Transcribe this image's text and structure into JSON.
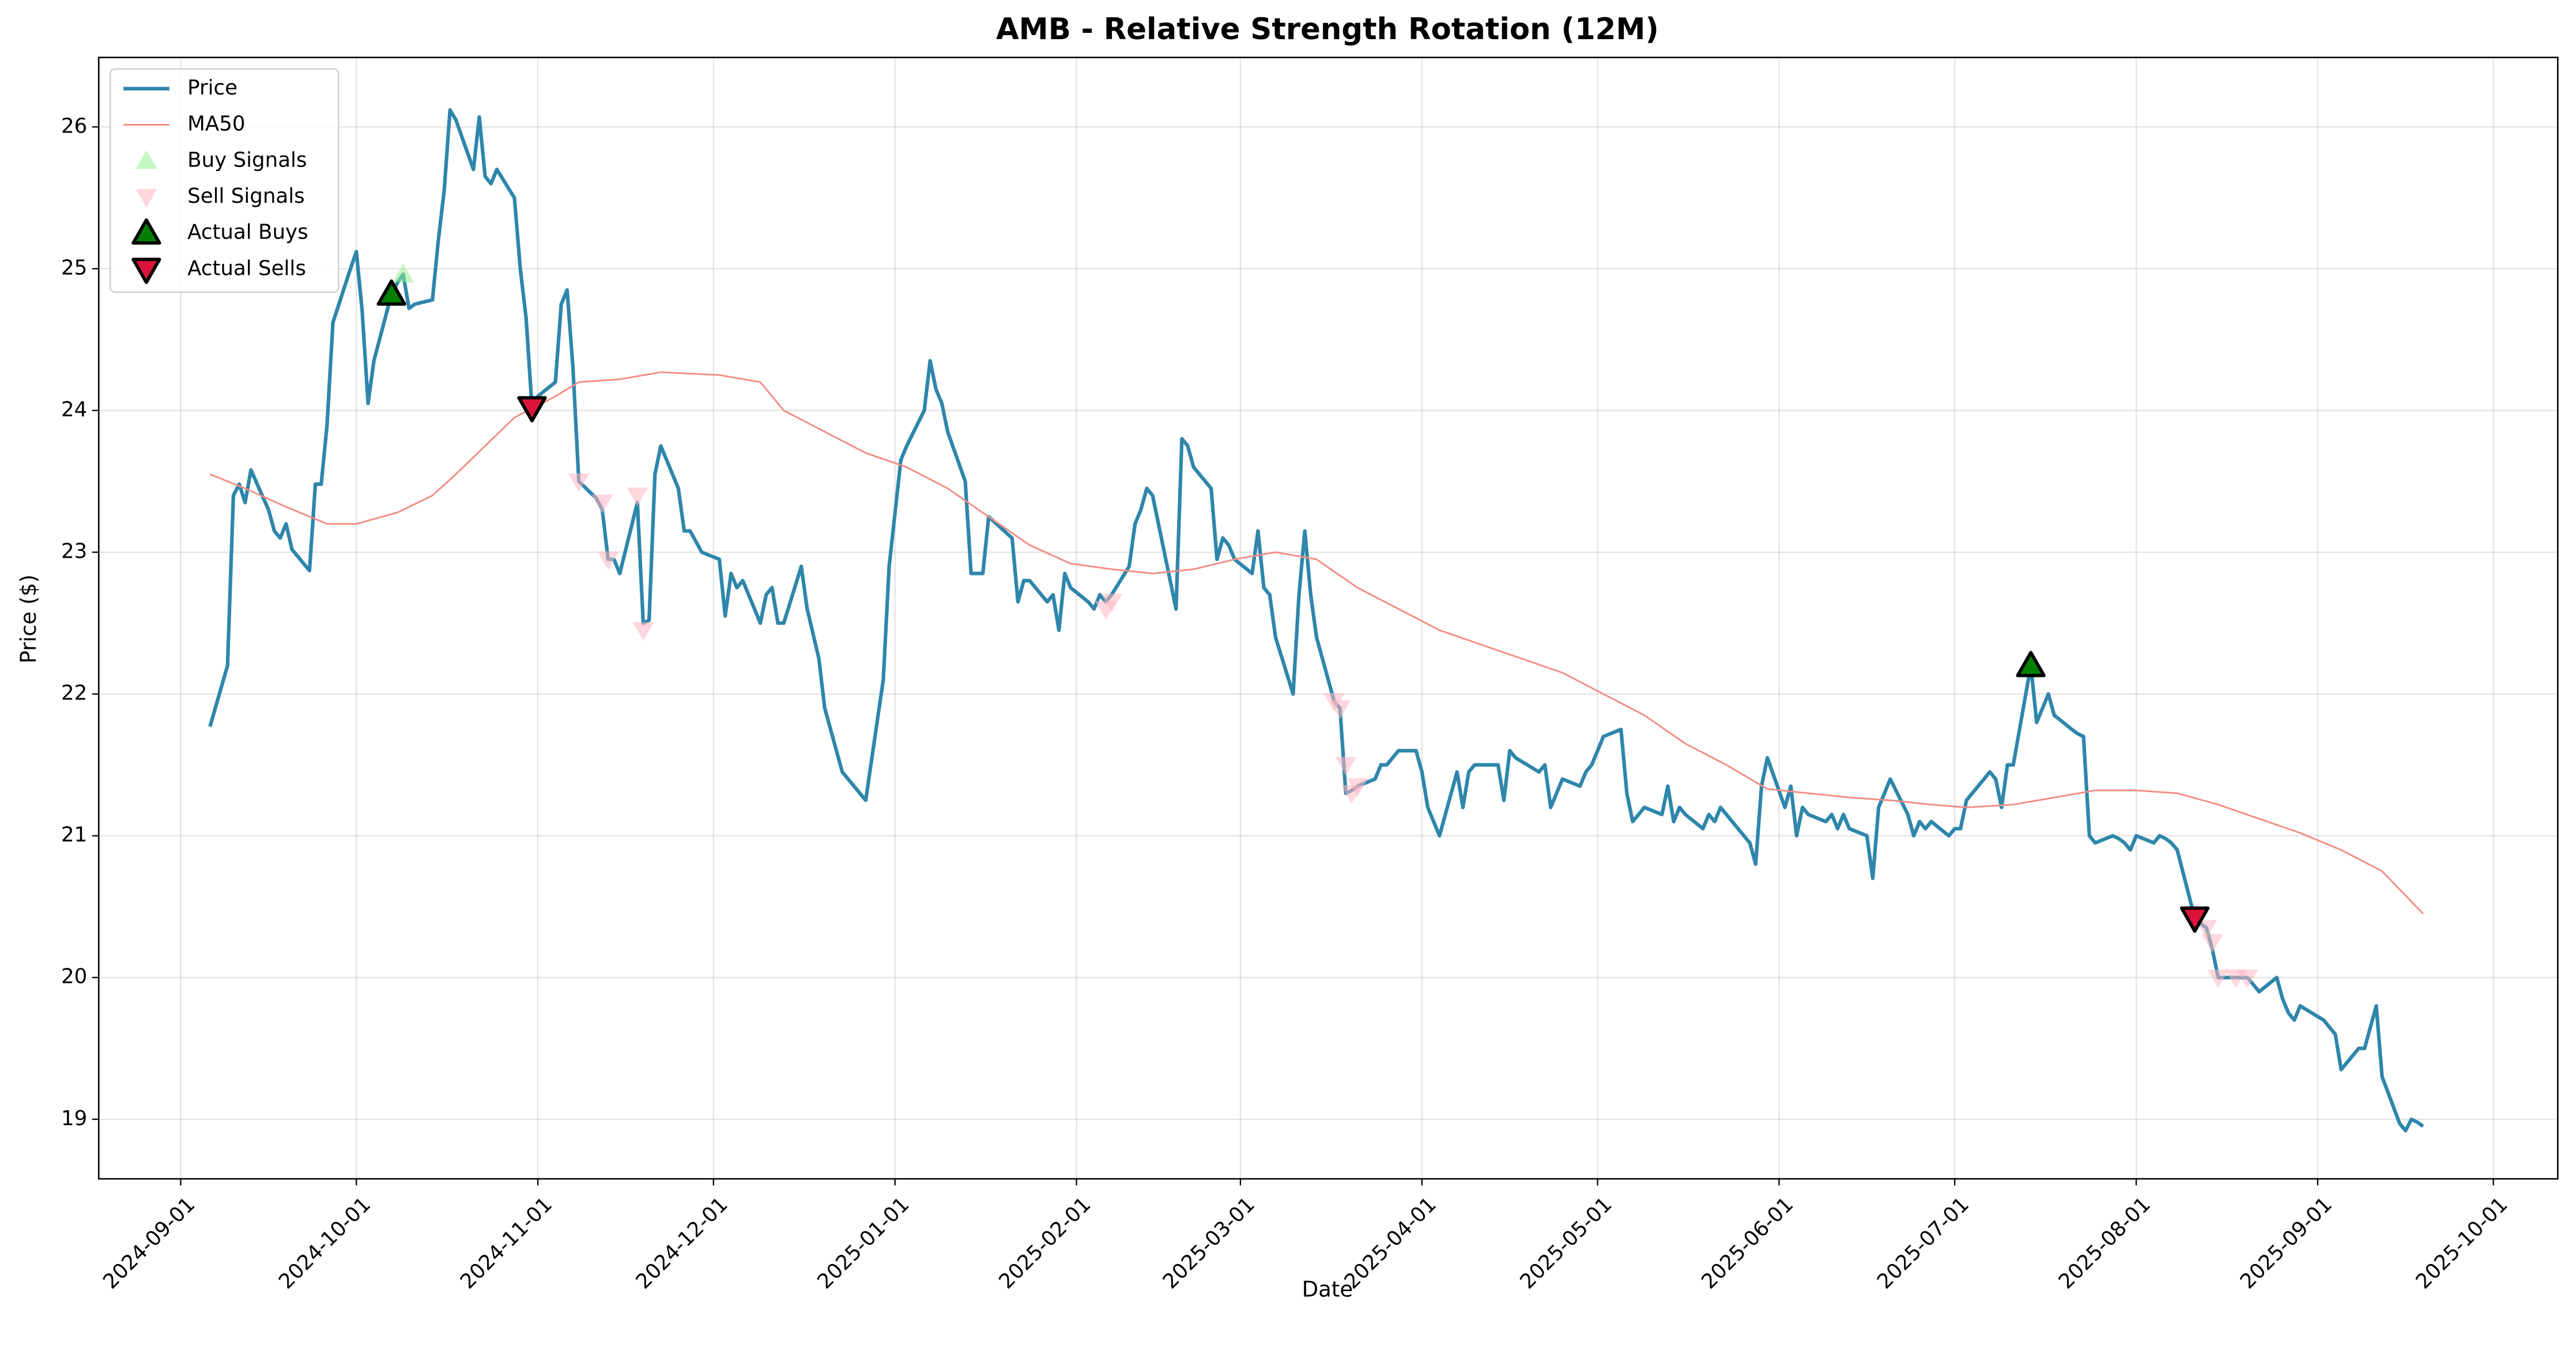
{
  "chart_data": {
    "type": "line",
    "title": "AMB - Relative Strength Rotation (12M)",
    "x_label": "Date",
    "y_label": "Price ($)",
    "xlim": [
      "2024-08-18",
      "2025-10-12"
    ],
    "ylim": [
      18.58,
      26.49
    ],
    "xticks": [
      "2024-09-01",
      "2024-10-01",
      "2024-11-01",
      "2024-12-01",
      "2025-01-01",
      "2025-02-01",
      "2025-03-01",
      "2025-04-01",
      "2025-05-01",
      "2025-06-01",
      "2025-07-01",
      "2025-08-01",
      "2025-09-01",
      "2025-10-01"
    ],
    "yticks": [
      19,
      20,
      21,
      22,
      23,
      24,
      25,
      26
    ],
    "grid": true,
    "legend": "upper left",
    "series": [
      {
        "name": "Price",
        "kind": "line",
        "color": "#2e86ab",
        "linewidth": 2.2,
        "x": [
          "2024-09-06",
          "2024-09-09",
          "2024-09-10",
          "2024-09-11",
          "2024-09-12",
          "2024-09-13",
          "2024-09-16",
          "2024-09-17",
          "2024-09-18",
          "2024-09-19",
          "2024-09-20",
          "2024-09-23",
          "2024-09-24",
          "2024-09-25",
          "2024-09-26",
          "2024-09-27",
          "2024-09-30",
          "2024-10-01",
          "2024-10-02",
          "2024-10-03",
          "2024-10-04",
          "2024-10-07",
          "2024-10-08",
          "2024-10-09",
          "2024-10-10",
          "2024-10-11",
          "2024-10-14",
          "2024-10-15",
          "2024-10-16",
          "2024-10-17",
          "2024-10-18",
          "2024-10-21",
          "2024-10-22",
          "2024-10-23",
          "2024-10-24",
          "2024-10-25",
          "2024-10-28",
          "2024-10-29",
          "2024-10-30",
          "2024-10-31",
          "2024-11-01",
          "2024-11-04",
          "2024-11-05",
          "2024-11-06",
          "2024-11-07",
          "2024-11-08",
          "2024-11-11",
          "2024-11-12",
          "2024-11-13",
          "2024-11-14",
          "2024-11-15",
          "2024-11-18",
          "2024-11-19",
          "2024-11-20",
          "2024-11-21",
          "2024-11-22",
          "2024-11-25",
          "2024-11-26",
          "2024-11-27",
          "2024-11-29",
          "2024-12-02",
          "2024-12-03",
          "2024-12-04",
          "2024-12-05",
          "2024-12-06",
          "2024-12-09",
          "2024-12-10",
          "2024-12-11",
          "2024-12-12",
          "2024-12-13",
          "2024-12-16",
          "2024-12-17",
          "2024-12-19",
          "2024-12-20",
          "2024-12-23",
          "2024-12-27",
          "2024-12-30",
          "2024-12-31",
          "2025-01-02",
          "2025-01-03",
          "2025-01-06",
          "2025-01-07",
          "2025-01-08",
          "2025-01-09",
          "2025-01-10",
          "2025-01-13",
          "2025-01-14",
          "2025-01-15",
          "2025-01-16",
          "2025-01-17",
          "2025-01-21",
          "2025-01-22",
          "2025-01-23",
          "2025-01-24",
          "2025-01-27",
          "2025-01-28",
          "2025-01-29",
          "2025-01-30",
          "2025-01-31",
          "2025-02-03",
          "2025-02-04",
          "2025-02-05",
          "2025-02-06",
          "2025-02-07",
          "2025-02-10",
          "2025-02-11",
          "2025-02-12",
          "2025-02-13",
          "2025-02-14",
          "2025-02-18",
          "2025-02-19",
          "2025-02-20",
          "2025-02-21",
          "2025-02-24",
          "2025-02-25",
          "2025-02-26",
          "2025-02-27",
          "2025-02-28",
          "2025-03-03",
          "2025-03-04",
          "2025-03-05",
          "2025-03-06",
          "2025-03-07",
          "2025-03-10",
          "2025-03-11",
          "2025-03-12",
          "2025-03-13",
          "2025-03-14",
          "2025-03-17",
          "2025-03-18",
          "2025-03-19",
          "2025-03-20",
          "2025-03-21",
          "2025-03-24",
          "2025-03-25",
          "2025-03-26",
          "2025-03-27",
          "2025-03-28",
          "2025-03-31",
          "2025-04-01",
          "2025-04-02",
          "2025-04-03",
          "2025-04-04",
          "2025-04-07",
          "2025-04-08",
          "2025-04-09",
          "2025-04-10",
          "2025-04-11",
          "2025-04-14",
          "2025-04-15",
          "2025-04-16",
          "2025-04-17",
          "2025-04-21",
          "2025-04-22",
          "2025-04-23",
          "2025-04-24",
          "2025-04-25",
          "2025-04-28",
          "2025-04-29",
          "2025-04-30",
          "2025-05-01",
          "2025-05-02",
          "2025-05-05",
          "2025-05-06",
          "2025-05-07",
          "2025-05-08",
          "2025-05-09",
          "2025-05-12",
          "2025-05-13",
          "2025-05-14",
          "2025-05-15",
          "2025-05-16",
          "2025-05-19",
          "2025-05-20",
          "2025-05-21",
          "2025-05-22",
          "2025-05-23",
          "2025-05-27",
          "2025-05-28",
          "2025-05-29",
          "2025-05-30",
          "2025-06-02",
          "2025-06-03",
          "2025-06-04",
          "2025-06-05",
          "2025-06-06",
          "2025-06-09",
          "2025-06-10",
          "2025-06-11",
          "2025-06-12",
          "2025-06-13",
          "2025-06-16",
          "2025-06-17",
          "2025-06-18",
          "2025-06-20",
          "2025-06-23",
          "2025-06-24",
          "2025-06-25",
          "2025-06-26",
          "2025-06-27",
          "2025-06-30",
          "2025-07-01",
          "2025-07-02",
          "2025-07-03",
          "2025-07-07",
          "2025-07-08",
          "2025-07-09",
          "2025-07-10",
          "2025-07-11",
          "2025-07-14",
          "2025-07-15",
          "2025-07-16",
          "2025-07-17",
          "2025-07-18",
          "2025-07-21",
          "2025-07-22",
          "2025-07-23",
          "2025-07-24",
          "2025-07-25",
          "2025-07-28",
          "2025-07-29",
          "2025-07-30",
          "2025-07-31",
          "2025-08-01",
          "2025-08-04",
          "2025-08-05",
          "2025-08-06",
          "2025-08-07",
          "2025-08-08",
          "2025-08-11",
          "2025-08-12",
          "2025-08-13",
          "2025-08-14",
          "2025-08-15",
          "2025-08-18",
          "2025-08-19",
          "2025-08-20",
          "2025-08-21",
          "2025-08-22",
          "2025-08-25",
          "2025-08-26",
          "2025-08-27",
          "2025-08-28",
          "2025-08-29",
          "2025-09-02",
          "2025-09-03",
          "2025-09-04",
          "2025-09-05",
          "2025-09-08",
          "2025-09-09",
          "2025-09-10",
          "2025-09-11",
          "2025-09-12",
          "2025-09-15",
          "2025-09-16",
          "2025-09-17",
          "2025-09-18",
          "2025-09-19"
        ],
        "values": [
          21.77,
          22.2,
          23.4,
          23.48,
          23.35,
          23.58,
          23.3,
          23.15,
          23.1,
          23.2,
          23.02,
          22.87,
          23.48,
          23.48,
          23.9,
          24.62,
          25.0,
          25.12,
          24.7,
          24.05,
          24.35,
          24.82,
          24.9,
          24.96,
          24.72,
          24.75,
          24.78,
          25.2,
          25.55,
          26.12,
          26.05,
          25.7,
          26.07,
          25.65,
          25.6,
          25.7,
          25.5,
          25.0,
          24.65,
          24.02,
          24.1,
          24.2,
          24.75,
          24.85,
          24.3,
          23.5,
          23.38,
          23.3,
          22.95,
          22.95,
          22.85,
          23.35,
          22.5,
          22.52,
          23.55,
          23.75,
          23.45,
          23.15,
          23.15,
          23.0,
          22.95,
          22.55,
          22.85,
          22.75,
          22.8,
          22.5,
          22.7,
          22.75,
          22.5,
          22.5,
          22.9,
          22.6,
          22.25,
          21.9,
          21.45,
          21.25,
          22.1,
          22.9,
          23.65,
          23.75,
          24.0,
          24.35,
          24.15,
          24.05,
          23.85,
          23.5,
          22.85,
          22.85,
          22.85,
          23.25,
          23.1,
          22.65,
          22.8,
          22.8,
          22.65,
          22.7,
          22.45,
          22.85,
          22.75,
          22.65,
          22.6,
          22.7,
          22.65,
          22.7,
          22.9,
          23.2,
          23.3,
          23.45,
          23.4,
          22.6,
          23.8,
          23.75,
          23.6,
          23.45,
          22.95,
          23.1,
          23.05,
          22.95,
          22.85,
          23.15,
          22.75,
          22.7,
          22.4,
          22.0,
          22.7,
          23.15,
          22.7,
          22.4,
          21.95,
          21.9,
          21.3,
          21.32,
          21.35,
          21.4,
          21.5,
          21.5,
          21.55,
          21.6,
          21.6,
          21.45,
          21.2,
          21.1,
          21.0,
          21.45,
          21.2,
          21.45,
          21.5,
          21.5,
          21.5,
          21.25,
          21.6,
          21.55,
          21.45,
          21.5,
          21.2,
          21.3,
          21.4,
          21.35,
          21.45,
          21.5,
          21.6,
          21.7,
          21.75,
          21.3,
          21.1,
          21.15,
          21.2,
          21.15,
          21.35,
          21.1,
          21.2,
          21.15,
          21.05,
          21.15,
          21.1,
          21.2,
          21.15,
          20.95,
          20.8,
          21.35,
          21.55,
          21.2,
          21.35,
          21.0,
          21.2,
          21.15,
          21.1,
          21.15,
          21.05,
          21.15,
          21.05,
          21.0,
          20.7,
          21.2,
          21.4,
          21.15,
          21.0,
          21.1,
          21.05,
          21.1,
          21.0,
          21.05,
          21.05,
          21.25,
          21.45,
          21.4,
          21.2,
          21.5,
          21.5,
          22.2,
          21.8,
          21.9,
          22.0,
          21.85,
          21.75,
          21.72,
          21.7,
          21.0,
          20.95,
          21.0,
          20.98,
          20.95,
          20.9,
          21.0,
          20.95,
          21.0,
          20.98,
          20.95,
          20.9,
          20.42,
          20.38,
          20.35,
          20.2,
          20.0,
          20.0,
          20.0,
          20.0,
          19.95,
          19.9,
          20.0,
          19.85,
          19.75,
          19.7,
          19.8,
          19.7,
          19.65,
          19.6,
          19.35,
          19.5,
          19.5,
          19.65,
          19.8,
          19.3,
          18.97,
          18.92,
          19.0,
          18.98,
          18.95
        ]
      },
      {
        "name": "MA50",
        "kind": "line",
        "color": "#f28b82",
        "linewidth": 1,
        "x": [
          "2024-09-06",
          "2024-09-12",
          "2024-09-19",
          "2024-09-26",
          "2024-10-01",
          "2024-10-08",
          "2024-10-14",
          "2024-10-18",
          "2024-10-23",
          "2024-10-28",
          "2024-11-04",
          "2024-11-08",
          "2024-11-15",
          "2024-11-22",
          "2024-12-02",
          "2024-12-09",
          "2024-12-13",
          "2024-12-20",
          "2024-12-27",
          "2025-01-03",
          "2025-01-10",
          "2025-01-17",
          "2025-01-24",
          "2025-01-31",
          "2025-02-07",
          "2025-02-14",
          "2025-02-21",
          "2025-02-28",
          "2025-03-07",
          "2025-03-14",
          "2025-03-21",
          "2025-03-28",
          "2025-04-04",
          "2025-04-11",
          "2025-04-18",
          "2025-04-25",
          "2025-05-02",
          "2025-05-09",
          "2025-05-16",
          "2025-05-23",
          "2025-05-30",
          "2025-06-06",
          "2025-06-13",
          "2025-06-20",
          "2025-06-27",
          "2025-07-03",
          "2025-07-11",
          "2025-07-18",
          "2025-07-25",
          "2025-08-01",
          "2025-08-08",
          "2025-08-15",
          "2025-08-22",
          "2025-08-29",
          "2025-09-05",
          "2025-09-12",
          "2025-09-19"
        ],
        "values": [
          23.55,
          23.45,
          23.32,
          23.2,
          23.2,
          23.28,
          23.4,
          23.55,
          23.75,
          23.95,
          24.1,
          24.2,
          24.22,
          24.27,
          24.25,
          24.2,
          24.0,
          23.85,
          23.7,
          23.6,
          23.45,
          23.25,
          23.05,
          22.92,
          22.88,
          22.85,
          22.88,
          22.95,
          23.0,
          22.95,
          22.75,
          22.6,
          22.45,
          22.35,
          22.25,
          22.15,
          22.0,
          21.85,
          21.65,
          21.5,
          21.33,
          21.3,
          21.27,
          21.25,
          21.22,
          21.2,
          21.22,
          21.27,
          21.32,
          21.32,
          21.3,
          21.22,
          21.12,
          21.02,
          20.9,
          20.75,
          20.45
        ]
      },
      {
        "name": "Buy Signals",
        "kind": "scatter",
        "marker": "^",
        "color": "#90ee90",
        "alpha": 0.55,
        "x": [
          "2024-10-09"
        ],
        "values": [
          24.96
        ]
      },
      {
        "name": "Sell Signals",
        "kind": "scatter",
        "marker": "v",
        "color": "#ffb6c1",
        "alpha": 0.55,
        "x": [
          "2024-11-08",
          "2024-11-12",
          "2024-11-13",
          "2024-11-18",
          "2024-11-19",
          "2025-02-06",
          "2025-02-07",
          "2025-03-17",
          "2025-03-18",
          "2025-03-19",
          "2025-03-20",
          "2025-03-21",
          "2025-08-13",
          "2025-08-14",
          "2025-08-15",
          "2025-08-18",
          "2025-08-20"
        ],
        "values": [
          23.5,
          23.35,
          22.95,
          23.4,
          22.45,
          22.6,
          22.65,
          21.95,
          21.9,
          21.5,
          21.3,
          21.35,
          20.35,
          20.25,
          20.0,
          20.0,
          20.0
        ]
      },
      {
        "name": "Actual Buys",
        "kind": "scatter",
        "marker": "^",
        "color": "#008000",
        "edgecolor": "#000000",
        "alpha": 1,
        "x": [
          "2024-10-07",
          "2025-07-14"
        ],
        "values": [
          24.82,
          22.2
        ]
      },
      {
        "name": "Actual Sells",
        "kind": "scatter",
        "marker": "v",
        "color": "#dc143c",
        "edgecolor": "#000000",
        "alpha": 1,
        "x": [
          "2024-10-31",
          "2025-08-11"
        ],
        "values": [
          24.02,
          20.42
        ]
      }
    ]
  }
}
